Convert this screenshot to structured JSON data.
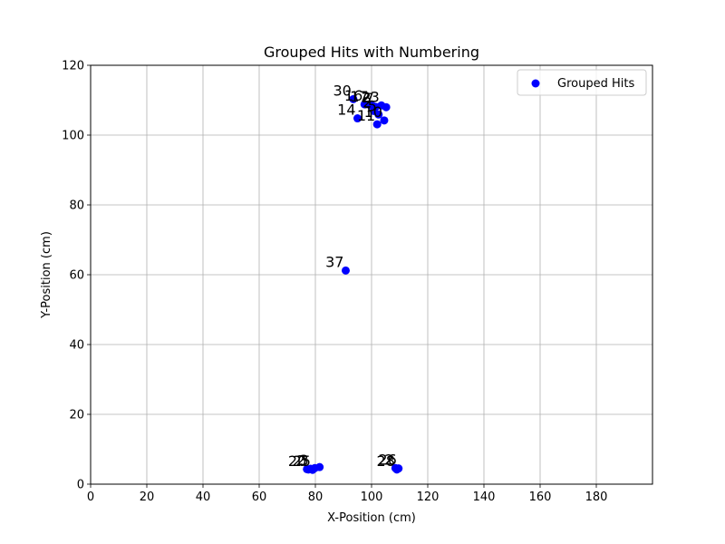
{
  "chart_data": {
    "type": "scatter",
    "title": "Grouped Hits with Numbering",
    "xlabel": "X-Position (cm)",
    "ylabel": "Y-Position (cm)",
    "xlim": [
      0,
      200
    ],
    "ylim": [
      0,
      120
    ],
    "xticks": [
      0,
      20,
      40,
      60,
      80,
      100,
      120,
      140,
      160,
      180
    ],
    "yticks": [
      0,
      20,
      40,
      60,
      80,
      100,
      120
    ],
    "grid": true,
    "legend_position": "top-right",
    "series": [
      {
        "name": "Grouped Hits",
        "color": "#0000ff",
        "points": [
          {
            "x": 93.5,
            "y": 110.3,
            "label": "30"
          },
          {
            "x": 97.5,
            "y": 108.8,
            "label": "16"
          },
          {
            "x": 99.5,
            "y": 108.6,
            "label": "17"
          },
          {
            "x": 100.5,
            "y": 108.3,
            "label": "2"
          },
          {
            "x": 101.5,
            "y": 108.1,
            "label": "7"
          },
          {
            "x": 103.5,
            "y": 108.5,
            "label": "23"
          },
          {
            "x": 105.2,
            "y": 108.0,
            "label": ""
          },
          {
            "x": 100.8,
            "y": 106.9,
            "label": "2"
          },
          {
            "x": 102.5,
            "y": 105.9,
            "label": "5"
          },
          {
            "x": 95.0,
            "y": 104.8,
            "label": "14"
          },
          {
            "x": 104.5,
            "y": 104.2,
            "label": "10"
          },
          {
            "x": 102.0,
            "y": 103.1,
            "label": "11"
          },
          {
            "x": 90.8,
            "y": 61.2,
            "label": "37"
          },
          {
            "x": 77.0,
            "y": 4.3,
            "label": "2"
          },
          {
            "x": 77.5,
            "y": 4.2,
            "label": "20"
          },
          {
            "x": 78.3,
            "y": 4.4,
            "label": "3"
          },
          {
            "x": 79.0,
            "y": 4.1,
            "label": "25"
          },
          {
            "x": 79.8,
            "y": 4.6,
            "label": ""
          },
          {
            "x": 81.5,
            "y": 4.9,
            "label": ""
          },
          {
            "x": 108.5,
            "y": 4.6,
            "label": "2"
          },
          {
            "x": 109.0,
            "y": 4.2,
            "label": "28"
          },
          {
            "x": 109.6,
            "y": 4.5,
            "label": "26"
          }
        ]
      }
    ]
  }
}
